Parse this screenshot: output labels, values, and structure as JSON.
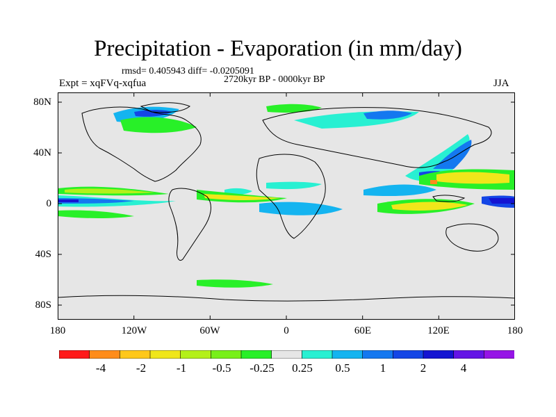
{
  "title": "Precipitation - Evaporation (in mm/day)",
  "stats": "rmsd= 0.405943 diff= -0.0205091",
  "period": "2720kyr BP - 0000kyr BP",
  "experiment": "Expt = xqFVq-xqfua",
  "season": "JJA",
  "map": {
    "background_color": "#e6e6e6",
    "coast_color": "#000000",
    "lat_labels": [
      "80N",
      "40N",
      "0",
      "40S",
      "80S"
    ],
    "lon_labels": [
      "180",
      "120W",
      "60W",
      "0",
      "60E",
      "120E",
      "180"
    ]
  },
  "colorbar": {
    "colors": [
      "#ff1a1a",
      "#ff8c1a",
      "#ffc81a",
      "#f0e61a",
      "#b4f01a",
      "#78f01a",
      "#28f028",
      "#e6e6e6",
      "#28f0d2",
      "#14b4f0",
      "#1478f0",
      "#1446e6",
      "#1414d2",
      "#6414e6",
      "#9614e6"
    ],
    "labels": [
      "-4",
      "-2",
      "-1",
      "-0.5",
      "-0.25",
      "0.25",
      "0.5",
      "1",
      "2",
      "4"
    ]
  }
}
